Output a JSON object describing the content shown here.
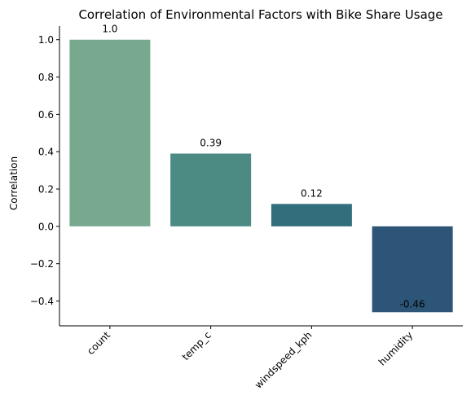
{
  "chart_data": {
    "type": "bar",
    "title": "Correlation of Environmental Factors with Bike Share Usage",
    "xlabel": "",
    "ylabel": "Correlation",
    "categories": [
      "count",
      "temp_c",
      "windspeed_kph",
      "humidity"
    ],
    "values": [
      1.0,
      0.39,
      0.12,
      -0.46
    ],
    "value_labels": [
      "1.0",
      "0.39",
      "0.12",
      "-0.46"
    ],
    "bar_colors": [
      "#77a98f",
      "#4b8b84",
      "#326f7d",
      "#2c5577"
    ],
    "ylim": [
      -0.533,
      1.073
    ],
    "yticks": [
      -0.4,
      -0.2,
      0.0,
      0.2,
      0.4,
      0.6,
      0.8,
      1.0
    ],
    "ytick_labels": [
      "−0.4",
      "−0.2",
      "0.0",
      "0.2",
      "0.4",
      "0.6",
      "0.8",
      "1.0"
    ],
    "grid": false,
    "legend": "none"
  }
}
